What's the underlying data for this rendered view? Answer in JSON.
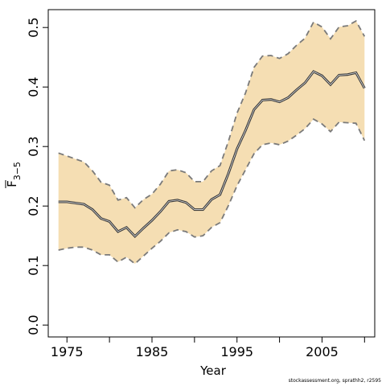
{
  "chart_data": {
    "type": "line",
    "xlabel": "Year",
    "ylabel": {
      "main": "F",
      "subscript": "3−5"
    },
    "xlim": [
      1972.8,
      2011.2
    ],
    "ylim": [
      -0.02,
      0.53
    ],
    "x_ticks": [
      1975,
      1985,
      1995,
      2005
    ],
    "x_minor_ticks": [
      1980,
      1990,
      2000,
      2010
    ],
    "y_ticks": [
      0.0,
      0.1,
      0.2,
      0.3,
      0.4,
      0.5
    ],
    "y_tick_labels": [
      "0.0",
      "0.1",
      "0.2",
      "0.3",
      "0.4",
      "0.5"
    ],
    "grid": false,
    "colors": {
      "band": "#f5deb3",
      "mean": "#3b3b3b",
      "bounds": "#7a7a7a"
    },
    "x": [
      1974,
      1975,
      1976,
      1977,
      1978,
      1979,
      1980,
      1981,
      1982,
      1983,
      1984,
      1985,
      1986,
      1987,
      1988,
      1989,
      1990,
      1991,
      1992,
      1993,
      1994,
      1995,
      1996,
      1997,
      1998,
      1999,
      2000,
      2001,
      2002,
      2003,
      2004,
      2005,
      2006,
      2007,
      2008,
      2009,
      2010
    ],
    "series": [
      {
        "role": "mean",
        "values": [
          0.207,
          0.207,
          0.205,
          0.203,
          0.194,
          0.179,
          0.174,
          0.157,
          0.164,
          0.149,
          0.163,
          0.176,
          0.191,
          0.208,
          0.21,
          0.206,
          0.194,
          0.194,
          0.211,
          0.219,
          0.255,
          0.296,
          0.327,
          0.362,
          0.378,
          0.379,
          0.375,
          0.382,
          0.395,
          0.407,
          0.426,
          0.419,
          0.404,
          0.42,
          0.421,
          0.424,
          0.398
        ]
      },
      {
        "role": "upper",
        "values": [
          0.289,
          0.284,
          0.279,
          0.274,
          0.259,
          0.24,
          0.235,
          0.21,
          0.214,
          0.197,
          0.211,
          0.22,
          0.237,
          0.259,
          0.261,
          0.256,
          0.241,
          0.241,
          0.259,
          0.268,
          0.309,
          0.356,
          0.39,
          0.433,
          0.452,
          0.453,
          0.448,
          0.456,
          0.47,
          0.482,
          0.509,
          0.501,
          0.481,
          0.501,
          0.503,
          0.511,
          0.485
        ]
      },
      {
        "role": "lower",
        "values": [
          0.126,
          0.129,
          0.131,
          0.131,
          0.126,
          0.118,
          0.118,
          0.106,
          0.114,
          0.103,
          0.116,
          0.129,
          0.141,
          0.155,
          0.16,
          0.157,
          0.148,
          0.15,
          0.164,
          0.172,
          0.201,
          0.234,
          0.261,
          0.288,
          0.303,
          0.306,
          0.303,
          0.309,
          0.319,
          0.33,
          0.346,
          0.338,
          0.325,
          0.341,
          0.34,
          0.339,
          0.31
        ]
      }
    ]
  },
  "credit": "stockassessment.org, sprathh2, r2595"
}
